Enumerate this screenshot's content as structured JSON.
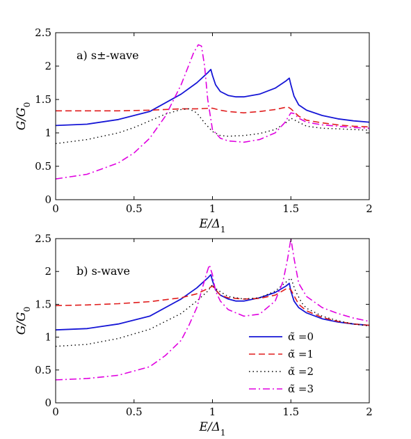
{
  "colors": {
    "s0": "#1515d6",
    "s1": "#e01b1b",
    "s2": "#000000",
    "s3": "#e000e0"
  },
  "legend_labels": [
    "α̃ =0",
    "α̃ =1",
    "α̃ =2",
    "α̃ =3"
  ],
  "chart_data": [
    {
      "type": "line",
      "annotation": "a) s±-wave",
      "xlabel": "E/Δ1",
      "ylabel": "G/G0",
      "xlim": [
        0,
        2
      ],
      "ylim": [
        0,
        2.5
      ],
      "xticks": [
        "0",
        "0.5",
        "1",
        "1.5",
        "2"
      ],
      "yticks": [
        "0",
        "0.5",
        "1",
        "1.5",
        "2",
        "2.5"
      ],
      "series": [
        {
          "x": [
            0,
            0.2,
            0.4,
            0.6,
            0.8,
            0.9,
            0.97,
            0.99,
            1.0,
            1.02,
            1.05,
            1.1,
            1.15,
            1.2,
            1.3,
            1.4,
            1.47,
            1.49,
            1.5,
            1.52,
            1.55,
            1.6,
            1.7,
            1.8,
            1.9,
            2.0
          ],
          "y": [
            1.11,
            1.13,
            1.2,
            1.32,
            1.58,
            1.75,
            1.9,
            1.95,
            1.86,
            1.72,
            1.62,
            1.56,
            1.54,
            1.54,
            1.58,
            1.67,
            1.78,
            1.82,
            1.72,
            1.55,
            1.42,
            1.34,
            1.26,
            1.21,
            1.18,
            1.16
          ]
        },
        {
          "x": [
            0,
            0.2,
            0.4,
            0.6,
            0.8,
            0.9,
            1.0,
            1.05,
            1.1,
            1.2,
            1.3,
            1.4,
            1.48,
            1.5,
            1.55,
            1.6,
            1.7,
            1.8,
            1.9,
            2.0
          ],
          "y": [
            1.33,
            1.33,
            1.33,
            1.34,
            1.36,
            1.36,
            1.37,
            1.34,
            1.32,
            1.3,
            1.32,
            1.35,
            1.39,
            1.36,
            1.25,
            1.19,
            1.15,
            1.12,
            1.1,
            1.09
          ]
        },
        {
          "x": [
            0,
            0.2,
            0.4,
            0.5,
            0.6,
            0.7,
            0.8,
            0.85,
            0.9,
            0.95,
            1.0,
            1.05,
            1.1,
            1.2,
            1.3,
            1.4,
            1.48,
            1.5,
            1.55,
            1.6,
            1.7,
            1.8,
            1.9,
            2.0
          ],
          "y": [
            0.84,
            0.9,
            1.0,
            1.08,
            1.18,
            1.28,
            1.35,
            1.36,
            1.3,
            1.15,
            1.02,
            0.96,
            0.95,
            0.96,
            0.99,
            1.05,
            1.17,
            1.22,
            1.16,
            1.1,
            1.07,
            1.06,
            1.05,
            1.04
          ]
        },
        {
          "x": [
            0,
            0.2,
            0.4,
            0.5,
            0.6,
            0.7,
            0.8,
            0.85,
            0.88,
            0.91,
            0.93,
            0.95,
            0.97,
            1.0,
            1.05,
            1.1,
            1.2,
            1.3,
            1.4,
            1.46,
            1.5,
            1.52,
            1.55,
            1.6,
            1.7,
            1.8,
            1.9,
            2.0
          ],
          "y": [
            0.31,
            0.38,
            0.55,
            0.7,
            0.92,
            1.25,
            1.72,
            2.02,
            2.2,
            2.32,
            2.3,
            2.0,
            1.5,
            1.05,
            0.92,
            0.88,
            0.86,
            0.9,
            1.0,
            1.15,
            1.3,
            1.29,
            1.22,
            1.16,
            1.12,
            1.1,
            1.08,
            1.07
          ]
        }
      ]
    },
    {
      "type": "line",
      "annotation": "b) s-wave",
      "xlabel": "E/Δ1",
      "ylabel": "G/G0",
      "xlim": [
        0,
        2
      ],
      "ylim": [
        0,
        2.5
      ],
      "xticks": [
        "0",
        "0.5",
        "1",
        "1.5",
        "2"
      ],
      "yticks": [
        "0",
        "0.5",
        "1",
        "1.5",
        "2",
        "2.5"
      ],
      "series": [
        {
          "x": [
            0,
            0.2,
            0.4,
            0.6,
            0.8,
            0.9,
            0.97,
            0.99,
            1.0,
            1.02,
            1.05,
            1.1,
            1.15,
            1.2,
            1.3,
            1.4,
            1.47,
            1.49,
            1.5,
            1.52,
            1.55,
            1.6,
            1.7,
            1.8,
            1.9,
            2.0
          ],
          "y": [
            1.11,
            1.13,
            1.2,
            1.32,
            1.58,
            1.75,
            1.9,
            1.95,
            1.86,
            1.72,
            1.64,
            1.58,
            1.55,
            1.55,
            1.6,
            1.68,
            1.78,
            1.82,
            1.7,
            1.55,
            1.45,
            1.37,
            1.28,
            1.23,
            1.2,
            1.18
          ]
        },
        {
          "x": [
            0,
            0.2,
            0.4,
            0.6,
            0.8,
            0.9,
            0.98,
            1.0,
            1.05,
            1.1,
            1.2,
            1.3,
            1.4,
            1.48,
            1.5,
            1.55,
            1.6,
            1.7,
            1.8,
            1.9,
            2.0
          ],
          "y": [
            1.48,
            1.49,
            1.51,
            1.54,
            1.6,
            1.66,
            1.75,
            1.78,
            1.64,
            1.6,
            1.58,
            1.59,
            1.64,
            1.75,
            1.72,
            1.5,
            1.4,
            1.3,
            1.24,
            1.2,
            1.18
          ]
        },
        {
          "x": [
            0,
            0.2,
            0.4,
            0.6,
            0.8,
            0.9,
            0.97,
            1.0,
            1.03,
            1.1,
            1.2,
            1.3,
            1.4,
            1.46,
            1.5,
            1.53,
            1.57,
            1.6,
            1.7,
            1.8,
            1.9,
            2.0
          ],
          "y": [
            0.86,
            0.89,
            0.98,
            1.12,
            1.36,
            1.55,
            1.7,
            1.8,
            1.72,
            1.62,
            1.58,
            1.6,
            1.7,
            1.82,
            1.9,
            1.7,
            1.52,
            1.44,
            1.32,
            1.25,
            1.2,
            1.17
          ]
        },
        {
          "x": [
            0,
            0.2,
            0.4,
            0.6,
            0.7,
            0.8,
            0.85,
            0.9,
            0.93,
            0.96,
            0.98,
            1.0,
            1.02,
            1.05,
            1.1,
            1.2,
            1.3,
            1.4,
            1.45,
            1.48,
            1.5,
            1.52,
            1.55,
            1.6,
            1.7,
            1.8,
            1.9,
            2.0
          ],
          "y": [
            0.35,
            0.37,
            0.42,
            0.55,
            0.72,
            0.95,
            1.18,
            1.45,
            1.7,
            1.95,
            2.1,
            1.95,
            1.7,
            1.55,
            1.42,
            1.32,
            1.35,
            1.55,
            1.85,
            2.2,
            2.5,
            2.2,
            1.82,
            1.62,
            1.45,
            1.36,
            1.29,
            1.24
          ]
        }
      ]
    }
  ]
}
